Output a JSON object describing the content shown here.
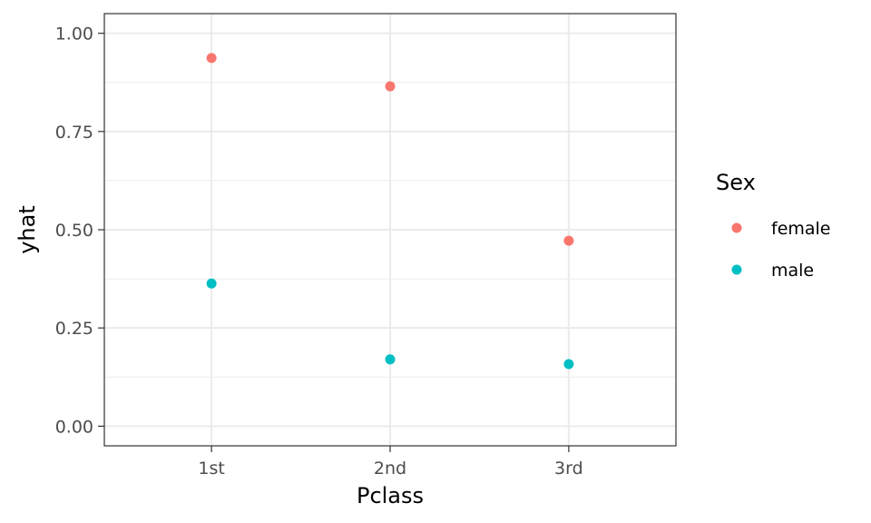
{
  "chart_data": {
    "type": "scatter",
    "xlabel": "Pclass",
    "ylabel": "yhat",
    "categories": [
      "1st",
      "2nd",
      "3rd"
    ],
    "ylim": [
      -0.05,
      1.05
    ],
    "yticks": [
      "0.00",
      "0.25",
      "0.50",
      "0.75",
      "1.00"
    ],
    "ytick_values": [
      0,
      0.25,
      0.5,
      0.75,
      1.0
    ],
    "grid": true,
    "legend": {
      "title": "Sex",
      "placement": "right"
    },
    "series": [
      {
        "name": "female",
        "color": "#F8766D",
        "values": [
          0.937,
          0.865,
          0.472
        ]
      },
      {
        "name": "male",
        "color": "#00BFC4",
        "values": [
          0.363,
          0.17,
          0.158
        ]
      }
    ]
  }
}
